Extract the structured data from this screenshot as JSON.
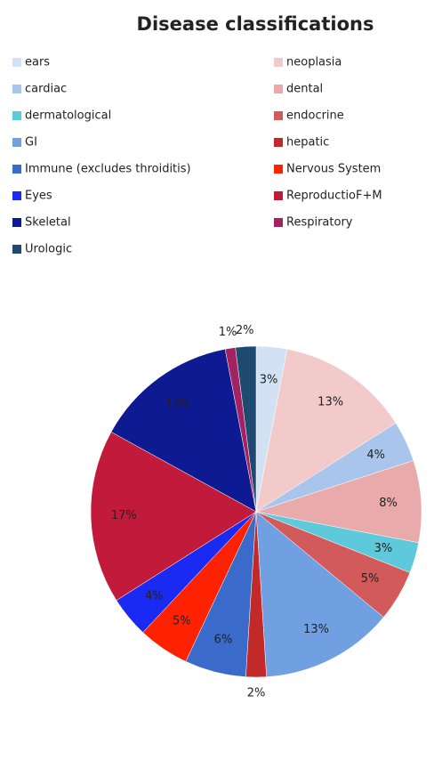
{
  "chart_data": {
    "type": "pie",
    "title": "Disease classifications",
    "categories": [
      "ears",
      "neoplasia",
      "cardiac",
      "dental",
      "dermatological",
      "endocrine",
      "GI",
      "hepatic",
      "Immune (excludes throiditis)",
      "Nervous System",
      "Eyes",
      "ReproductioF+M",
      "Skeletal",
      "Respiratory",
      "Urologic"
    ],
    "values": [
      3,
      13,
      4,
      8,
      3,
      5,
      13,
      2,
      6,
      5,
      4,
      17,
      14,
      1,
      2
    ],
    "value_labels": [
      "3%",
      "13%",
      "4%",
      "8%",
      "3%",
      "5%",
      "13%",
      "2%",
      "6%",
      "5%",
      "4%",
      "17%",
      "14%",
      "1%",
      "2%"
    ],
    "colors": [
      "#d2e2f4",
      "#f2caca",
      "#a9c5ec",
      "#e8aaaa",
      "#5ec9da",
      "#d25a5a",
      "#70a0e2",
      "#c22a2a",
      "#3a6aca",
      "#ff2200",
      "#1a2af2",
      "#c21a3a",
      "#0e1a92",
      "#a22262",
      "#1e4a72"
    ],
    "legend": "top"
  }
}
